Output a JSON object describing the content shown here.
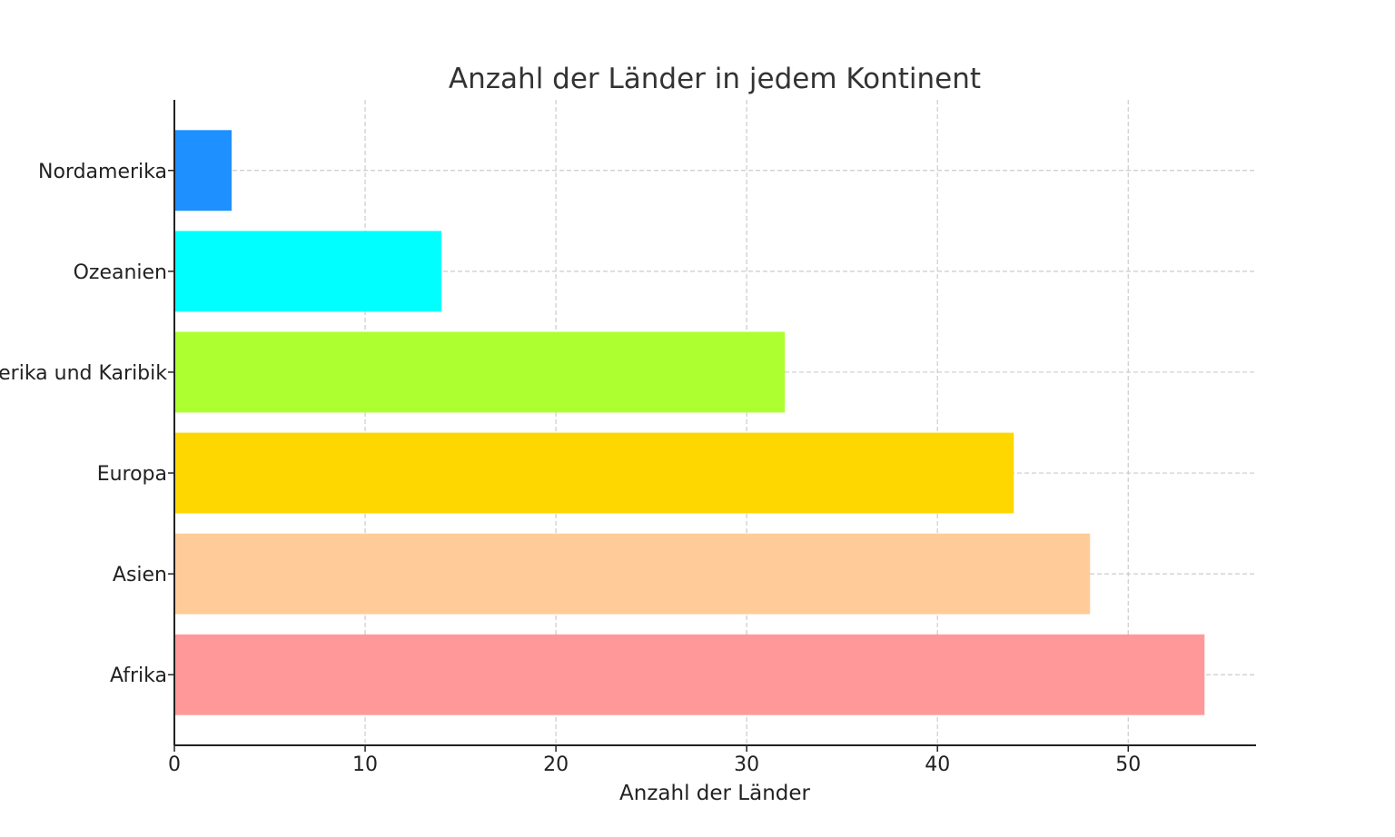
{
  "chart_data": {
    "type": "bar",
    "orientation": "horizontal",
    "title": "Anzahl der Länder in jedem Kontinent",
    "xlabel": "Anzahl der Länder",
    "ylabel": "",
    "categories": [
      "Afrika",
      "Asien",
      "Europa",
      "Lateinamerika und Karibik",
      "Ozeanien",
      "Nordamerika"
    ],
    "values": [
      54,
      48,
      44,
      32,
      14,
      3
    ],
    "colors": [
      "#FF9999",
      "#FFCC99",
      "#FFD700",
      "#ADFF2F",
      "#00FFFF",
      "#1E90FF"
    ],
    "xlim": [
      0,
      56.7
    ],
    "xticks": [
      0,
      10,
      20,
      30,
      40,
      50
    ],
    "grid": true
  }
}
